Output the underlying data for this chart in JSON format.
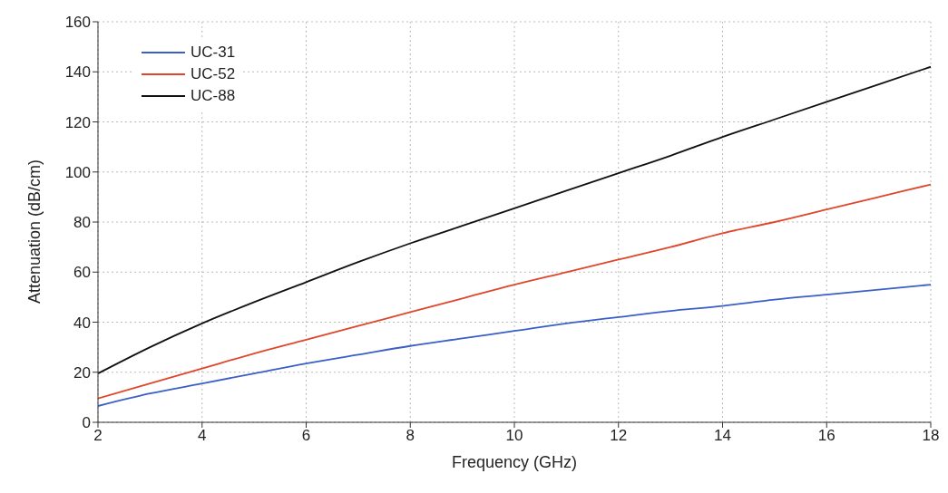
{
  "chart_data": {
    "type": "line",
    "xlabel": "Frequency (GHz)",
    "ylabel": "Attenuation (dB/cm)",
    "x": [
      2,
      3,
      4,
      5,
      6,
      7,
      8,
      9,
      10,
      11,
      12,
      13,
      14,
      15,
      16,
      17,
      18
    ],
    "series": [
      {
        "name": "UC-31",
        "color": "#3a5fc8",
        "values": [
          6.5,
          11.5,
          15.5,
          19.5,
          23.5,
          27,
          30.5,
          33.5,
          36.5,
          39.5,
          42,
          44.5,
          46.5,
          49,
          51,
          53,
          55
        ]
      },
      {
        "name": "UC-52",
        "color": "#e0462a",
        "values": [
          9.5,
          15.5,
          21.5,
          27.5,
          33,
          38.5,
          44,
          49.5,
          55,
          60,
          65,
          70,
          75.5,
          80,
          85,
          90,
          95
        ]
      },
      {
        "name": "UC-88",
        "color": "#111111",
        "values": [
          19.5,
          30,
          39.5,
          48,
          56,
          64,
          71.5,
          78.5,
          85.5,
          92.5,
          99.5,
          106.5,
          114,
          121,
          128,
          135,
          142
        ]
      }
    ],
    "xlim": [
      2,
      18
    ],
    "xticks": [
      2,
      4,
      6,
      8,
      10,
      12,
      14,
      16,
      18
    ],
    "ylim": [
      0,
      160
    ],
    "yticks": [
      0,
      20,
      40,
      60,
      80,
      100,
      120,
      140,
      160
    ],
    "grid": true,
    "legend": "top left",
    "line_style": "solid",
    "marker": "none"
  }
}
